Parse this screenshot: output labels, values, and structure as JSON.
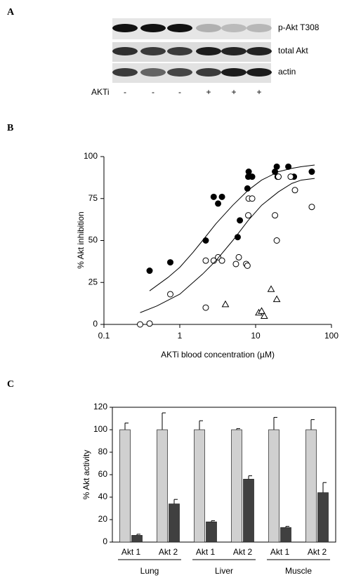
{
  "blot": {
    "panel_label": "A",
    "rows": [
      "p-Akt T308",
      "total Akt",
      "actin"
    ],
    "treatment_label": "AKTi",
    "lanes": [
      "-",
      "-",
      "-",
      "+",
      "+",
      "+"
    ]
  },
  "chart_data": [
    {
      "type": "scatter",
      "panel_label": "B",
      "xlabel": "AKTi blood concentration (µM)",
      "ylabel": "% Akt inhibition",
      "xscale": "log",
      "xlim": [
        0.1,
        100
      ],
      "xticks": [
        0.1,
        1,
        10,
        100
      ],
      "ylim": [
        0,
        100
      ],
      "yticks": [
        0,
        25,
        50,
        75,
        100
      ],
      "series": [
        {
          "marker": "filled-circle",
          "color": "#000000",
          "x": [
            0.4,
            0.75,
            2.2,
            2.8,
            3.2,
            3.6,
            5.8,
            6.2,
            7.8,
            8,
            8.1,
            9,
            18,
            19,
            19.5,
            27,
            32,
            55
          ],
          "values": [
            32,
            37,
            50,
            76,
            72,
            76,
            52,
            62,
            81,
            88,
            91,
            88,
            91,
            94,
            88,
            94,
            88,
            91
          ]
        },
        {
          "marker": "open-circle",
          "color": "#000000",
          "x": [
            0.3,
            0.4,
            0.75,
            2.2,
            2.2,
            2.8,
            3.2,
            3.6,
            5.5,
            6,
            7.5,
            7.8,
            8,
            8.1,
            9,
            18,
            19,
            20,
            29,
            33,
            55
          ],
          "values": [
            0,
            0.5,
            18,
            10,
            38,
            38,
            40,
            38,
            36,
            40,
            36,
            35,
            65,
            75,
            75,
            65,
            50,
            88,
            88,
            80,
            70
          ]
        },
        {
          "marker": "open-triangle",
          "color": "#000000",
          "x": [
            4,
            11,
            12,
            13,
            16,
            19
          ],
          "values": [
            12,
            7,
            8,
            5,
            21,
            15
          ]
        },
        {
          "marker": "line",
          "color": "#000000",
          "x": [
            0.4,
            0.7,
            1,
            1.5,
            2,
            3,
            5,
            8,
            12,
            20,
            30,
            40,
            60
          ],
          "values": [
            20,
            28,
            34,
            43,
            50,
            60,
            71,
            80,
            86,
            91,
            93,
            94,
            95
          ]
        },
        {
          "marker": "line",
          "color": "#000000",
          "x": [
            0.3,
            0.5,
            1,
            2,
            3,
            5,
            8,
            12,
            20,
            30,
            40,
            60
          ],
          "values": [
            7,
            11,
            18,
            30,
            38,
            50,
            62,
            71,
            79,
            84,
            86,
            87
          ]
        }
      ]
    },
    {
      "type": "bar",
      "panel_label": "C",
      "ylabel": "% Akt activity",
      "categories": [
        "Akt 1",
        "Akt 2",
        "Akt 1",
        "Akt 2",
        "Akt 1",
        "Akt 2"
      ],
      "groups": [
        "Lung",
        "Liver",
        "Muscle"
      ],
      "ylim": [
        0,
        120
      ],
      "yticks": [
        0,
        20,
        40,
        60,
        80,
        100,
        120
      ],
      "series": [
        {
          "color": "#d0d0d0",
          "values": [
            100,
            100,
            100,
            100,
            100,
            100
          ],
          "errors": [
            6,
            15,
            8,
            1,
            11,
            9
          ]
        },
        {
          "color": "#404040",
          "values": [
            6,
            34,
            18,
            56,
            13,
            44
          ],
          "errors": [
            1,
            4,
            1,
            3,
            1,
            9
          ]
        }
      ]
    }
  ]
}
